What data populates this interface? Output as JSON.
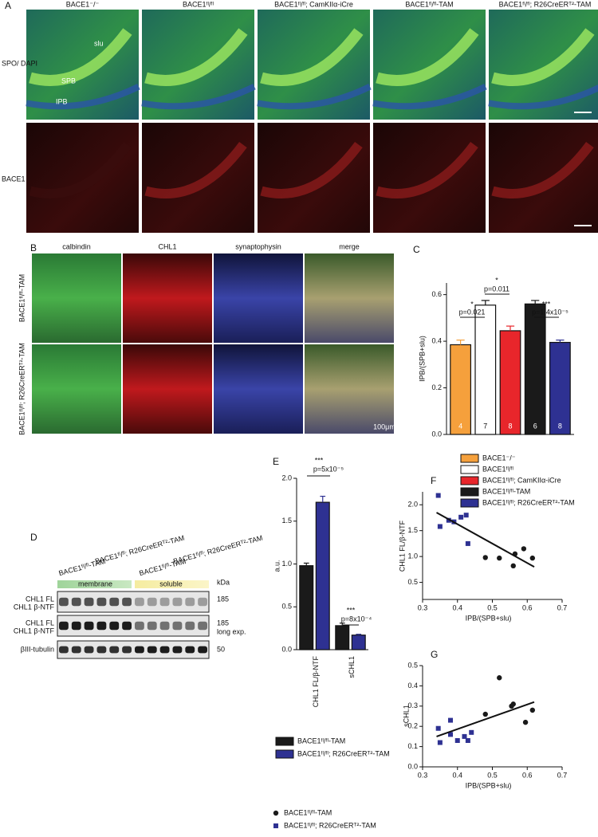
{
  "panel_a": {
    "label": "A",
    "columns": [
      "BACE1⁻/⁻",
      "BACE1ᶠˡ/ᶠˡ",
      "BACE1ᶠˡ/ᶠˡ; CamKIIα-iCre",
      "BACE1ᶠˡ/ᶠˡ-TAM",
      "BACE1ᶠˡ/ᶠˡ; R26CreERᵀ²-TAM"
    ],
    "rows": [
      "SPO/ DAPI",
      "BACE1"
    ],
    "annotations": [
      "slu",
      "SPB",
      "IPB"
    ]
  },
  "panel_b": {
    "label": "B",
    "columns": [
      "calbindin",
      "CHL1",
      "synaptophysin",
      "merge"
    ],
    "rows": [
      "BACE1ᶠˡ/ᶠˡ-TAM",
      "BACE1ᶠˡ/ᶠˡ; R26CreERᵀ²-TAM"
    ],
    "scale": "100μm"
  },
  "panel_d": {
    "label": "D",
    "groups": [
      "BACE1ᶠˡ/ᶠˡ-TAM",
      "BACE1ᶠˡ/ᶠˡ; R26CreERᵀ²-TAM",
      "BACE1ᶠˡ/ᶠˡ-TAM",
      "BACE1ᶠˡ/ᶠˡ; R26CreERᵀ²-TAM"
    ],
    "fractions": [
      "membrane",
      "soluble"
    ],
    "unit": "kDa",
    "bands": [
      "CHL1 FL",
      "CHL1 β-NTF",
      "CHL1 FL",
      "CHL1 β-NTF",
      "βIII-tubulin"
    ],
    "markers": [
      "185",
      "185",
      "long exp.",
      "50"
    ]
  },
  "chart_data": [
    {
      "type": "bar",
      "label": "C",
      "y_label": "IPB/(SPB+slu)",
      "categories": [
        null
      ],
      "ylim": [
        0,
        0.65
      ],
      "yticks": [
        {
          "value": 0,
          "label": "0.0"
        },
        0.2,
        0.4,
        0.6
      ],
      "series": [
        {
          "name": "BACE1⁻/⁻",
          "color": "#f5a03c",
          "values": [
            0.385
          ],
          "errors": [
            0.02
          ],
          "n": [
            4
          ]
        },
        {
          "name": "BACE1ᶠˡ/ᶠˡ",
          "color": "#ffffff",
          "values": [
            0.555
          ],
          "errors": [
            0.02
          ],
          "n": [
            7
          ]
        },
        {
          "name": "BACE1ᶠˡ/ᶠˡ; CamKIIα-iCre",
          "color": "#e8262b",
          "values": [
            0.445
          ],
          "errors": [
            0.02
          ],
          "n": [
            8
          ]
        },
        {
          "name": "BACE1ᶠˡ/ᶠˡ-TAM",
          "color": "#1a1a1a",
          "values": [
            0.56
          ],
          "errors": [
            0.015
          ],
          "n": [
            6
          ]
        },
        {
          "name": "BACE1ᶠˡ/ᶠˡ; R26CreERᵀ²-TAM",
          "color": "#2e3192",
          "values": [
            0.395
          ],
          "errors": [
            0.01
          ],
          "n": [
            8
          ]
        }
      ],
      "annotations": [
        "*",
        "p=0.021",
        "*",
        "p=0.011",
        "***",
        "p=1.4x10⁻⁵"
      ]
    },
    {
      "type": "bar",
      "label": "E",
      "y_label": "a.u.",
      "categories": [
        "CHL1 FL/β-NTF",
        "sCHL1"
      ],
      "ylim": [
        0,
        2.0
      ],
      "yticks": [
        {
          "value": 0,
          "label": "0.0"
        },
        0.5,
        {
          "value": 1,
          "label": "1.0"
        },
        1.5,
        {
          "value": 2,
          "label": "2.0"
        }
      ],
      "series": [
        {
          "name": "BACE1ᶠˡ/ᶠˡ-TAM",
          "color": "#1a1a1a",
          "values": [
            0.98,
            0.28
          ],
          "errors": [
            0.03,
            0.03
          ]
        },
        {
          "name": "BACE1ᶠˡ/ᶠˡ; R26CreERᵀ²-TAM",
          "color": "#2e3192",
          "values": [
            1.72,
            0.17
          ],
          "errors": [
            0.07,
            0.01
          ]
        }
      ],
      "annotations": [
        "***",
        "p=5x10⁻⁵",
        "***",
        "p=8x10⁻⁴"
      ]
    },
    {
      "type": "scatter",
      "label": "F",
      "x_label": "IPB/(SPB+slu)",
      "y_label": "CHL1 FL/β-NTF",
      "xlim": [
        0.3,
        0.7
      ],
      "xticks": [
        0.3,
        0.4,
        0.5,
        0.6,
        0.7
      ],
      "ylim": [
        0.17,
        2.25
      ],
      "yticks": [
        0.5,
        {
          "value": 1,
          "label": "1.0"
        },
        1.5,
        {
          "value": 2,
          "label": "2.0"
        }
      ],
      "series": [
        {
          "color": "#2e3192",
          "marker": "square",
          "x": [
            0.345,
            0.35,
            0.375,
            0.39,
            0.41,
            0.425,
            0.43
          ],
          "values": [
            2.18,
            1.58,
            1.7,
            1.67,
            1.76,
            1.8,
            1.25
          ]
        },
        {
          "color": "#1a1a1a",
          "marker": "circle",
          "x": [
            0.48,
            0.52,
            0.56,
            0.565,
            0.59,
            0.615
          ],
          "values": [
            0.98,
            0.97,
            0.82,
            1.05,
            1.15,
            0.97
          ]
        }
      ],
      "fit": {
        "x": [
          0.34,
          0.62
        ],
        "values": [
          1.85,
          0.8
        ]
      }
    },
    {
      "type": "scatter",
      "label": "G",
      "x_label": "IPB/(SPB+slu)",
      "y_label": "sCHL1",
      "xlim": [
        0.3,
        0.7
      ],
      "xticks": [
        0.3,
        0.4,
        0.5,
        0.6,
        0.7
      ],
      "ylim": [
        0,
        0.5
      ],
      "yticks": [
        {
          "value": 0,
          "label": "0.0"
        },
        0.1,
        0.2,
        0.3,
        0.4,
        0.5
      ],
      "series": [
        {
          "name": "BACE1ᶠˡ/ᶠˡ-TAM",
          "color": "#1a1a1a",
          "marker": "circle",
          "x": [
            0.48,
            0.52,
            0.555,
            0.56,
            0.595,
            0.615
          ],
          "values": [
            0.26,
            0.44,
            0.3,
            0.31,
            0.22,
            0.28
          ]
        },
        {
          "name": "BACE1ᶠˡ/ᶠˡ; R26CreERᵀ²-TAM",
          "color": "#2e3192",
          "marker": "square",
          "x": [
            0.345,
            0.35,
            0.38,
            0.38,
            0.4,
            0.42,
            0.43,
            0.44
          ],
          "values": [
            0.19,
            0.12,
            0.16,
            0.23,
            0.13,
            0.15,
            0.13,
            0.17
          ]
        }
      ],
      "fit": {
        "x": [
          0.34,
          0.62
        ],
        "values": [
          0.15,
          0.32
        ]
      }
    }
  ]
}
